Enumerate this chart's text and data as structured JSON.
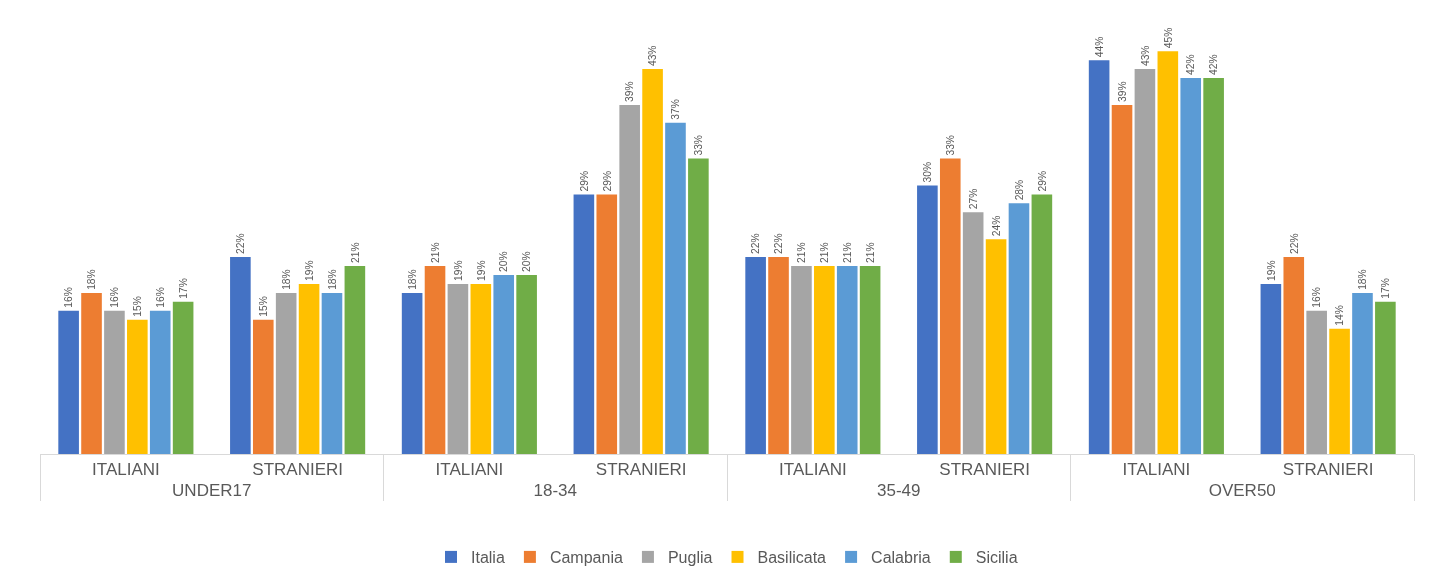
{
  "chart_data": {
    "type": "bar",
    "categories": [
      "ITALIANI",
      "STRANIERI",
      "ITALIANI",
      "STRANIERI",
      "ITALIANI",
      "STRANIERI",
      "ITALIANI",
      "STRANIERI"
    ],
    "annotations": [
      "UNDER17",
      "18-34",
      "35-49",
      "OVER50"
    ],
    "series": [
      {
        "name": "Italia",
        "color": "#4472c4",
        "values": [
          16,
          22,
          18,
          29,
          22,
          30,
          44,
          19
        ],
        "value_labels": [
          "16%",
          "22%",
          "18%",
          "29%",
          "22%",
          "30%",
          "44%",
          "19%"
        ]
      },
      {
        "name": "Campania",
        "color": "#ed7d31",
        "values": [
          18,
          15,
          21,
          29,
          22,
          33,
          39,
          22
        ],
        "value_labels": [
          "18%",
          "15%",
          "21%",
          "29%",
          "22%",
          "33%",
          "39%",
          "22%"
        ]
      },
      {
        "name": "Puglia",
        "color": "#a5a5a5",
        "values": [
          16,
          18,
          19,
          39,
          21,
          27,
          43,
          16
        ],
        "value_labels": [
          "16%",
          "18%",
          "19%",
          "39%",
          "21%",
          "27%",
          "43%",
          "16%"
        ]
      },
      {
        "name": "Basilicata",
        "color": "#ffc000",
        "values": [
          15,
          19,
          19,
          43,
          21,
          24,
          45,
          14
        ],
        "value_labels": [
          "15%",
          "19%",
          "19%",
          "43%",
          "21%",
          "24%",
          "45%",
          "14%"
        ]
      },
      {
        "name": "Calabria",
        "color": "#5b9bd5",
        "values": [
          16,
          18,
          20,
          37,
          21,
          28,
          42,
          18
        ],
        "value_labels": [
          "16%",
          "18%",
          "20%",
          "37%",
          "21%",
          "28%",
          "42%",
          "18%"
        ]
      },
      {
        "name": "Sicilia",
        "color": "#70ad47",
        "values": [
          17,
          21,
          20,
          33,
          21,
          29,
          42,
          17
        ],
        "value_labels": [
          "17%",
          "21%",
          "20%",
          "33%",
          "21%",
          "29%",
          "42%",
          "17%"
        ]
      }
    ],
    "tick_labels": "x",
    "grid": false,
    "legend": "bottom"
  }
}
